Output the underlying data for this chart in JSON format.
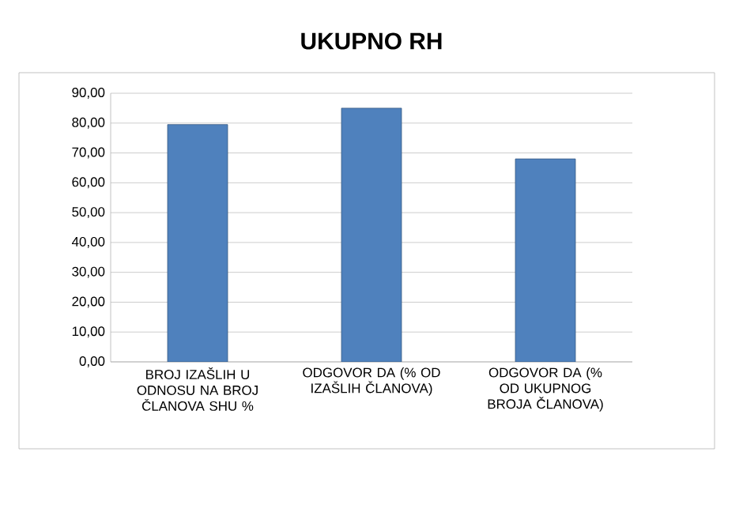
{
  "chart_data": {
    "type": "bar",
    "title": "UKUPNO RH",
    "categories": [
      "BROJ IZAŠLIH U ODNOSU NA BROJ ČLANOVA SHU %",
      "ODGOVOR DA (% OD IZAŠLIH ČLANOVA)",
      "ODGOVOR DA (% OD UKUPNOG BROJA ČLANOVA)"
    ],
    "values": [
      79.5,
      85,
      68
    ],
    "color": "#4f81bd",
    "ylim": [
      0,
      90
    ],
    "yticks": [
      {
        "value": 0,
        "label": "0,00"
      },
      {
        "value": 10,
        "label": "10,00"
      },
      {
        "value": 20,
        "label": "20,00"
      },
      {
        "value": 30,
        "label": "30,00"
      },
      {
        "value": 40,
        "label": "40,00"
      },
      {
        "value": 50,
        "label": "50,00"
      },
      {
        "value": 60,
        "label": "60,00"
      },
      {
        "value": 70,
        "label": "70,00"
      },
      {
        "value": 80,
        "label": "80,00"
      },
      {
        "value": 90,
        "label": "90,00"
      }
    ],
    "grid": "y"
  }
}
